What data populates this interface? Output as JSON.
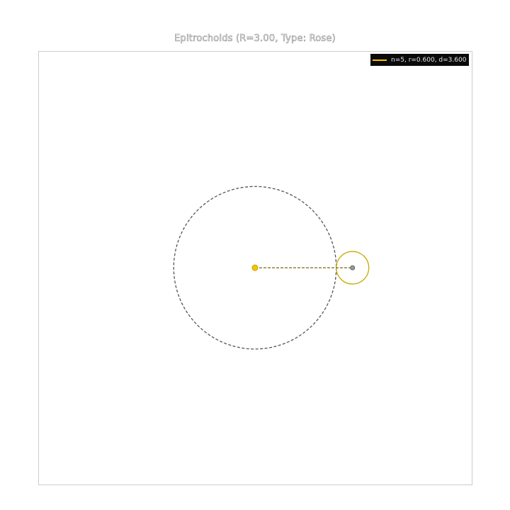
{
  "title": "Epitrochoids (R=3.00, Type: Rose)",
  "legend": {
    "label": "n=5, r=0.600, d=3.600",
    "color": "#f5c400"
  },
  "colors": {
    "accent": "#f5c400",
    "fixed_circle": "#555555",
    "rolling_circle": "#c8a800",
    "frame": "#cccccc",
    "pen_point": "#999999"
  },
  "chart_data": {
    "type": "diagram",
    "R": 3.0,
    "curve_type": "Rose",
    "n": 5,
    "r": 0.6,
    "d": 3.6,
    "xlim": [
      -8,
      8
    ],
    "ylim": [
      -8,
      8
    ],
    "elements": {
      "fixed_circle": {
        "cx": 0,
        "cy": 0,
        "radius": 3.0
      },
      "rolling_circle": {
        "cx": 3.6,
        "cy": 0,
        "radius": 0.6
      },
      "arm": {
        "from": [
          0,
          0
        ],
        "to": [
          3.6,
          0
        ]
      },
      "center_point": [
        0,
        0
      ],
      "pen_point": [
        3.6,
        0
      ]
    }
  }
}
